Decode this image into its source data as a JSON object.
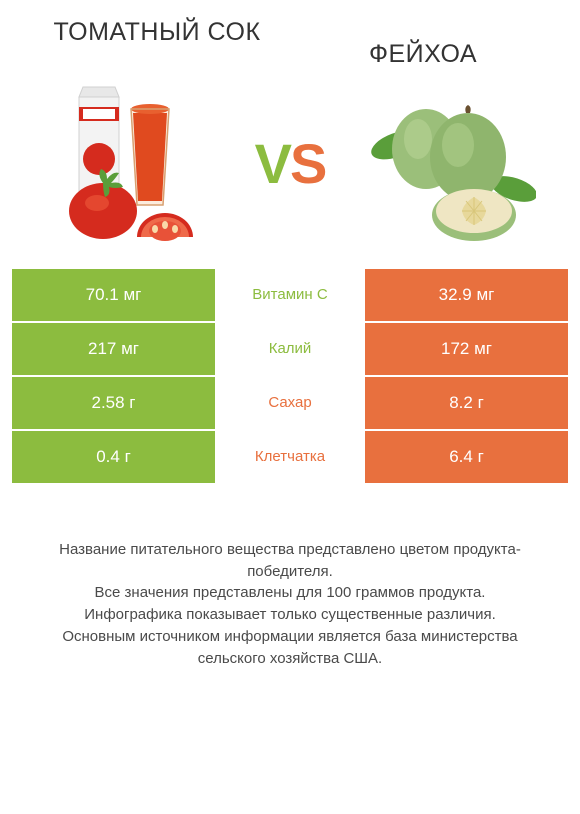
{
  "colors": {
    "left": "#8cbc3f",
    "right": "#e8703e",
    "text": "#3a3a3a",
    "bg": "#ffffff",
    "leaf": "#5a9e3a",
    "tomato_red": "#d52b1e",
    "tomato_dark": "#b5221a",
    "juice": "#e04a1f",
    "carton": "#efefef",
    "feijoa_skin": "#9bbf7a",
    "feijoa_skin_dark": "#7fa85f",
    "feijoa_flesh": "#efe6c3",
    "feijoa_core": "#e7d89b"
  },
  "left_title": "ТОМАТНЫЙ СОК",
  "right_title": "ФЕЙХОА",
  "vs": {
    "v": "V",
    "s": "S"
  },
  "rows": [
    {
      "label": "Витамин C",
      "left": "70.1 мг",
      "right": "32.9 мг",
      "winner": "left"
    },
    {
      "label": "Калий",
      "left": "217 мг",
      "right": "172 мг",
      "winner": "left"
    },
    {
      "label": "Сахар",
      "left": "2.58 г",
      "right": "8.2 г",
      "winner": "right"
    },
    {
      "label": "Клетчатка",
      "left": "0.4 г",
      "right": "6.4 г",
      "winner": "right"
    }
  ],
  "footer": [
    "Название питательного вещества представлено цветом продукта-победителя.",
    "Все значения представлены для 100 граммов продукта.",
    "Инфографика показывает только существенные различия.",
    "Основным источником информации является база министерства сельского хозяйства США."
  ]
}
